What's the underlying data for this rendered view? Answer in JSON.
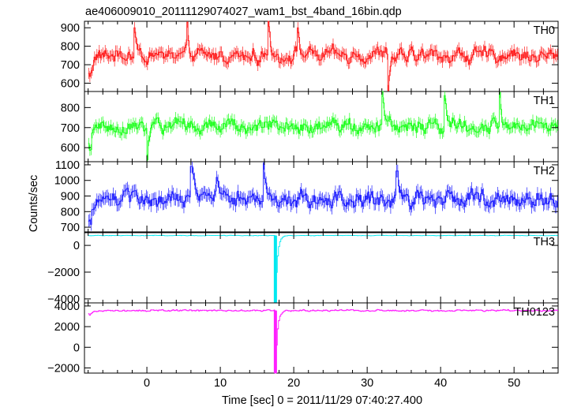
{
  "chart_data": {
    "type": "line",
    "title": "ae406009010_20111129074027_wam1_bst_4band_16bin.qdp",
    "xlabel": "Time [sec] 0 = 2011/11/29 07:40:27.400",
    "ylabel": "Counts/sec",
    "xlim": [
      -8.5,
      56
    ],
    "x_ticks": [
      0,
      10,
      20,
      30,
      40,
      50
    ],
    "x_tick_labels": [
      "0",
      "10",
      "20",
      "30",
      "40",
      "50"
    ],
    "grid": false,
    "panels": [
      {
        "name": "TH0",
        "color": "#ff2020",
        "ylim": [
          555,
          935
        ],
        "y_ticks": [
          600,
          700,
          800,
          900
        ],
        "y_tick_labels": [
          "600",
          "700",
          "800",
          "900"
        ],
        "baseline": 750,
        "noise": 55,
        "start_offset": -90,
        "spikes": [
          [
            32.8,
            560
          ],
          [
            -1.8,
            900
          ],
          [
            5.5,
            930
          ],
          [
            16.5,
            935
          ],
          [
            20.5,
            900
          ]
        ]
      },
      {
        "name": "TH1",
        "color": "#20ff20",
        "ylim": [
          530,
          880
        ],
        "y_ticks": [
          600,
          700,
          800
        ],
        "y_tick_labels": [
          "600",
          "700",
          "800"
        ],
        "baseline": 705,
        "noise": 50,
        "start_offset": -100,
        "spikes": [
          [
            0.0,
            540
          ],
          [
            32.0,
            880
          ],
          [
            40.5,
            860
          ],
          [
            48.0,
            875
          ]
        ]
      },
      {
        "name": "TH2",
        "color": "#2020ff",
        "ylim": [
          670,
          1120
        ],
        "y_ticks": [
          700,
          800,
          900,
          1000,
          1100
        ],
        "y_tick_labels": [
          "700",
          "800",
          "900",
          "1000",
          "1100"
        ],
        "baseline": 880,
        "noise": 75,
        "start_offset": -130,
        "spikes": [
          [
            15.8,
            1110
          ],
          [
            6.0,
            1090
          ],
          [
            9.5,
            1020
          ],
          [
            34.0,
            1060
          ]
        ]
      },
      {
        "name": "TH3",
        "color": "#00e8f0",
        "ylim": [
          -4300,
          950
        ],
        "y_ticks": [
          -4000,
          -2000,
          0
        ],
        "y_tick_labels": [
          "−4000",
          "−2000",
          "0"
        ],
        "baseline": 740,
        "noise": 28,
        "start_offset": -20,
        "dip": [
          17.5,
          -4300
        ]
      },
      {
        "name": "TH0123",
        "color": "#ff20ff",
        "ylim": [
          -2500,
          4300
        ],
        "y_ticks": [
          -2000,
          0,
          2000,
          4000
        ],
        "y_tick_labels": [
          "−2000",
          "0",
          "2000",
          "4000"
        ],
        "baseline": 3560,
        "noise": 110,
        "start_offset": -300,
        "dip": [
          17.5,
          -2500
        ]
      }
    ]
  }
}
